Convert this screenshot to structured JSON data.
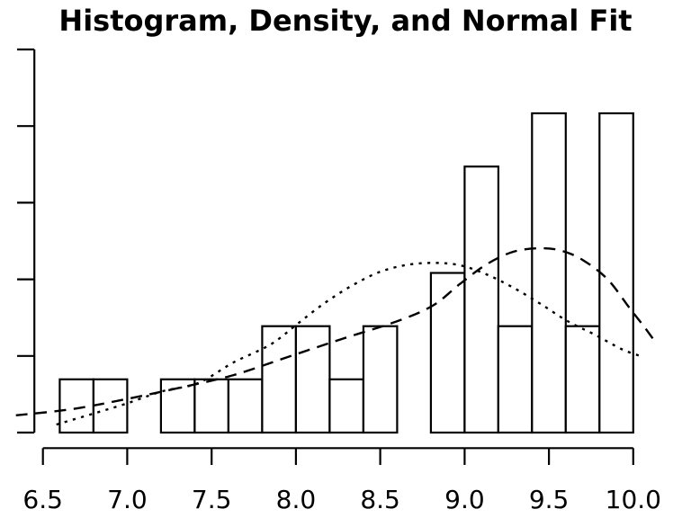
{
  "chart_data": {
    "type": "bar",
    "subtype": "histogram-with-density-curves",
    "title": "Histogram, Density, and Normal Fit",
    "xlabel": "",
    "ylabel": "",
    "xlim": [
      6.34,
      10.14
    ],
    "ylim": [
      0,
      1.0
    ],
    "grid": false,
    "legend_position": "none",
    "x_axis": {
      "ticks": [
        6.5,
        7.0,
        7.5,
        8.0,
        8.5,
        9.0,
        9.5,
        10.0
      ],
      "tick_labels": [
        "6.5",
        "7.0",
        "7.5",
        "8.0",
        "8.5",
        "9.0",
        "9.5",
        "10.0"
      ]
    },
    "y_axis": {
      "ticks": [
        0,
        0.2,
        0.4,
        0.6,
        0.8,
        1.0
      ],
      "tick_labels_shown": false
    },
    "histogram": {
      "bin_width": 0.2,
      "total_n": 36,
      "bins": [
        {
          "x0": 6.6,
          "x1": 6.8,
          "count": 1,
          "density": 0.1389
        },
        {
          "x0": 6.8,
          "x1": 7.0,
          "count": 1,
          "density": 0.1389
        },
        {
          "x0": 7.0,
          "x1": 7.2,
          "count": 0,
          "density": 0
        },
        {
          "x0": 7.2,
          "x1": 7.4,
          "count": 1,
          "density": 0.1389
        },
        {
          "x0": 7.4,
          "x1": 7.6,
          "count": 1,
          "density": 0.1389
        },
        {
          "x0": 7.6,
          "x1": 7.8,
          "count": 1,
          "density": 0.1389
        },
        {
          "x0": 7.8,
          "x1": 8.0,
          "count": 2,
          "density": 0.2778
        },
        {
          "x0": 8.0,
          "x1": 8.2,
          "count": 2,
          "density": 0.2778
        },
        {
          "x0": 8.2,
          "x1": 8.4,
          "count": 1,
          "density": 0.1389
        },
        {
          "x0": 8.4,
          "x1": 8.6,
          "count": 2,
          "density": 0.2778
        },
        {
          "x0": 8.6,
          "x1": 8.8,
          "count": 0,
          "density": 0
        },
        {
          "x0": 8.8,
          "x1": 9.0,
          "count": 3,
          "density": 0.4167
        },
        {
          "x0": 9.0,
          "x1": 9.2,
          "count": 5,
          "density": 0.6944
        },
        {
          "x0": 9.2,
          "x1": 9.4,
          "count": 2,
          "density": 0.2778
        },
        {
          "x0": 9.4,
          "x1": 9.6,
          "count": 6,
          "density": 0.8333
        },
        {
          "x0": 9.6,
          "x1": 9.8,
          "count": 2,
          "density": 0.2778
        },
        {
          "x0": 9.8,
          "x1": 10.0,
          "count": 6,
          "density": 0.8333
        }
      ]
    },
    "curves": [
      {
        "name": "kernel-density-estimate",
        "style": "dotted",
        "points": [
          [
            6.58,
            0.021
          ],
          [
            6.78,
            0.047
          ],
          [
            6.99,
            0.075
          ],
          [
            7.21,
            0.108
          ],
          [
            7.42,
            0.129
          ],
          [
            7.63,
            0.183
          ],
          [
            7.85,
            0.23
          ],
          [
            8.01,
            0.284
          ],
          [
            8.17,
            0.338
          ],
          [
            8.33,
            0.383
          ],
          [
            8.49,
            0.418
          ],
          [
            8.65,
            0.437
          ],
          [
            8.81,
            0.443
          ],
          [
            8.97,
            0.437
          ],
          [
            9.13,
            0.413
          ],
          [
            9.29,
            0.378
          ],
          [
            9.45,
            0.336
          ],
          [
            9.61,
            0.291
          ],
          [
            9.77,
            0.256
          ],
          [
            9.93,
            0.218
          ],
          [
            10.04,
            0.2
          ]
        ]
      },
      {
        "name": "normal-fit",
        "style": "dashed",
        "points": [
          [
            6.34,
            0.045
          ],
          [
            6.67,
            0.061
          ],
          [
            6.99,
            0.087
          ],
          [
            7.31,
            0.117
          ],
          [
            7.63,
            0.15
          ],
          [
            7.95,
            0.197
          ],
          [
            8.27,
            0.244
          ],
          [
            8.59,
            0.289
          ],
          [
            8.81,
            0.331
          ],
          [
            8.97,
            0.387
          ],
          [
            9.13,
            0.439
          ],
          [
            9.29,
            0.472
          ],
          [
            9.45,
            0.481
          ],
          [
            9.58,
            0.474
          ],
          [
            9.71,
            0.448
          ],
          [
            9.85,
            0.399
          ],
          [
            9.98,
            0.324
          ],
          [
            10.06,
            0.279
          ],
          [
            10.13,
            0.237
          ]
        ]
      }
    ],
    "colors": {
      "ink": "#000000",
      "background": "#ffffff",
      "bar_fill": "#ffffff",
      "bar_stroke": "#000000"
    }
  }
}
